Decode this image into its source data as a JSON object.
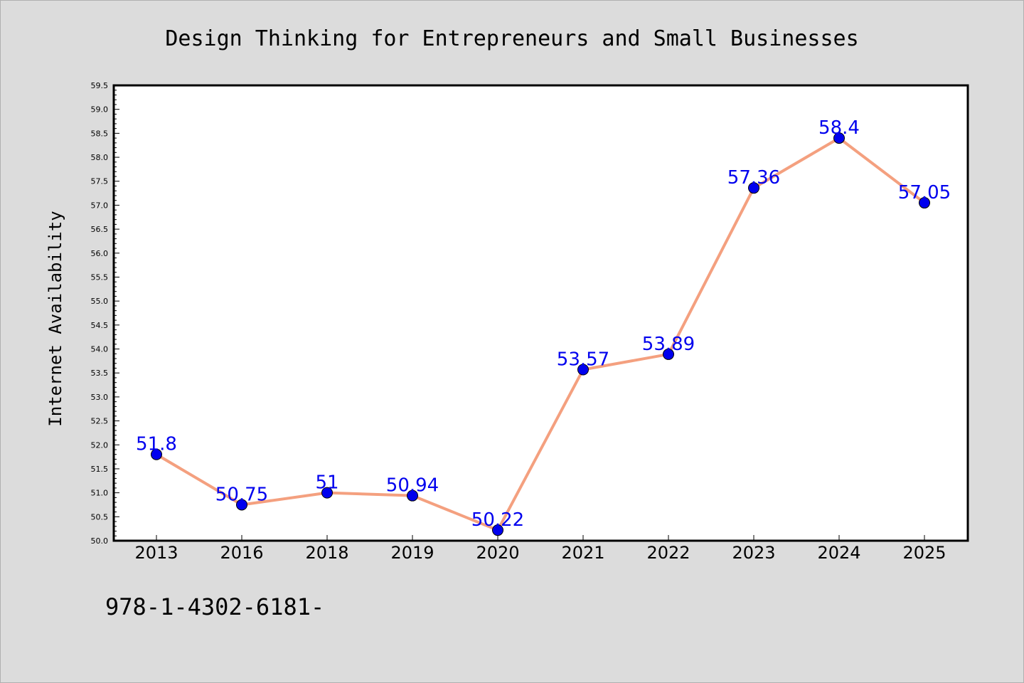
{
  "chart_data": {
    "type": "line",
    "title": "Design Thinking for Entrepreneurs and Small Businesses",
    "xlabel": "",
    "ylabel": "Internet Availability",
    "categories": [
      "2013",
      "2016",
      "2018",
      "2019",
      "2020",
      "2021",
      "2022",
      "2023",
      "2024",
      "2025"
    ],
    "values": [
      51.8,
      50.75,
      51,
      50.94,
      50.22,
      53.57,
      53.89,
      57.36,
      58.4,
      57.05
    ],
    "data_labels": [
      "51.8",
      "50.75",
      "51",
      "50.94",
      "50.22",
      "53.57",
      "53.89",
      "57.36",
      "58.4",
      "57.05"
    ],
    "ylim": [
      50.0,
      59.5
    ],
    "yticks": [
      "50.0",
      "50.5",
      "51.0",
      "51.5",
      "52.0",
      "52.5",
      "53.0",
      "53.5",
      "54.0",
      "54.5",
      "55.0",
      "55.5",
      "56.0",
      "56.5",
      "57.0",
      "57.5",
      "58.0",
      "58.5",
      "59.0",
      "59.5"
    ],
    "grid": false,
    "legend": "none",
    "line_color": "#f4a07f",
    "marker_color": "#0000ee",
    "label_color": "#0000ee",
    "background_color": "#dcdcdc",
    "plot_background": "#ffffff"
  },
  "footer_text": "978-1-4302-6181-"
}
